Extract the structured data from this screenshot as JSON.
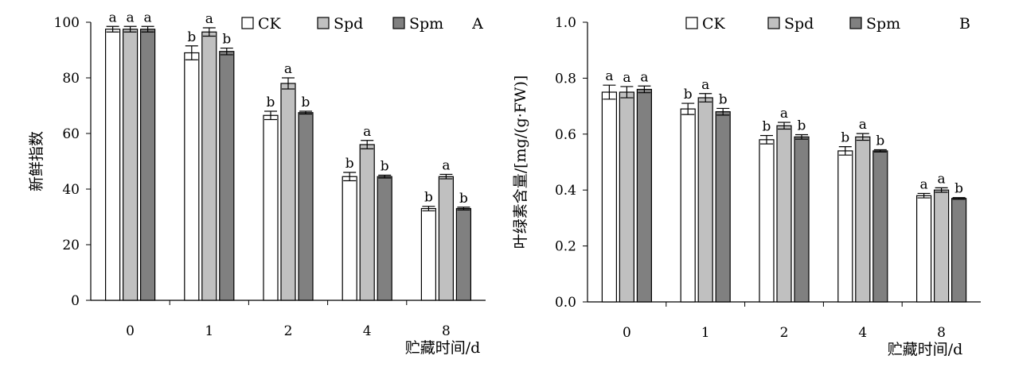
{
  "colors": {
    "CK": "#ffffff",
    "Spd": "#c0c0c0",
    "Spm": "#808080",
    "stroke": "#000000"
  },
  "chart_data": [
    {
      "type": "bar",
      "panel_label": "A",
      "categories": [
        "0",
        "1",
        "2",
        "4",
        "8"
      ],
      "xlabel": "贮藏时间/d",
      "ylabel": "新鲜指数",
      "ylim": [
        0,
        100
      ],
      "yticks": [
        "0",
        "20",
        "40",
        "60",
        "80",
        "100"
      ],
      "ytick_values": [
        0,
        20,
        40,
        60,
        80,
        100
      ],
      "legend_position": "top",
      "grid": false,
      "series": [
        {
          "name": "CK",
          "values": [
            97.5,
            89.0,
            66.5,
            44.5,
            33.0
          ],
          "errors": [
            1.0,
            2.5,
            1.5,
            1.5,
            0.8
          ],
          "labels": [
            "a",
            "b",
            "b",
            "b",
            "b"
          ]
        },
        {
          "name": "Spd",
          "values": [
            97.5,
            96.5,
            78.0,
            56.0,
            44.5
          ],
          "errors": [
            1.0,
            1.5,
            2.0,
            1.5,
            0.8
          ],
          "labels": [
            "a",
            "a",
            "a",
            "a",
            "a"
          ]
        },
        {
          "name": "Spm",
          "values": [
            97.5,
            89.5,
            67.5,
            44.5,
            33.0
          ],
          "errors": [
            1.0,
            1.2,
            0.5,
            0.5,
            0.5
          ],
          "labels": [
            "a",
            "b",
            "b",
            "b",
            "b"
          ]
        }
      ]
    },
    {
      "type": "bar",
      "panel_label": "B",
      "categories": [
        "0",
        "1",
        "2",
        "4",
        "8"
      ],
      "xlabel": "贮藏时间/d",
      "ylabel": "叶绿素含量/[mg/(g·FW)]",
      "ylim": [
        0,
        1.0
      ],
      "yticks": [
        "0.0",
        "0.2",
        "0.4",
        "0.6",
        "0.8",
        "1.0"
      ],
      "ytick_values": [
        0,
        0.2,
        0.4,
        0.6,
        0.8,
        1.0
      ],
      "legend_position": "top",
      "grid": false,
      "series": [
        {
          "name": "CK",
          "values": [
            0.75,
            0.69,
            0.58,
            0.54,
            0.38
          ],
          "errors": [
            0.025,
            0.02,
            0.015,
            0.015,
            0.008
          ],
          "labels": [
            "a",
            "b",
            "b",
            "b",
            "a"
          ]
        },
        {
          "name": "Spd",
          "values": [
            0.75,
            0.73,
            0.63,
            0.59,
            0.4
          ],
          "errors": [
            0.02,
            0.015,
            0.012,
            0.012,
            0.008
          ],
          "labels": [
            "a",
            "a",
            "a",
            "a",
            "a"
          ]
        },
        {
          "name": "Spm",
          "values": [
            0.76,
            0.68,
            0.59,
            0.54,
            0.37
          ],
          "errors": [
            0.012,
            0.012,
            0.008,
            0.004,
            0.003
          ],
          "labels": [
            "a",
            "b",
            "b",
            "b",
            "b"
          ]
        }
      ]
    }
  ]
}
